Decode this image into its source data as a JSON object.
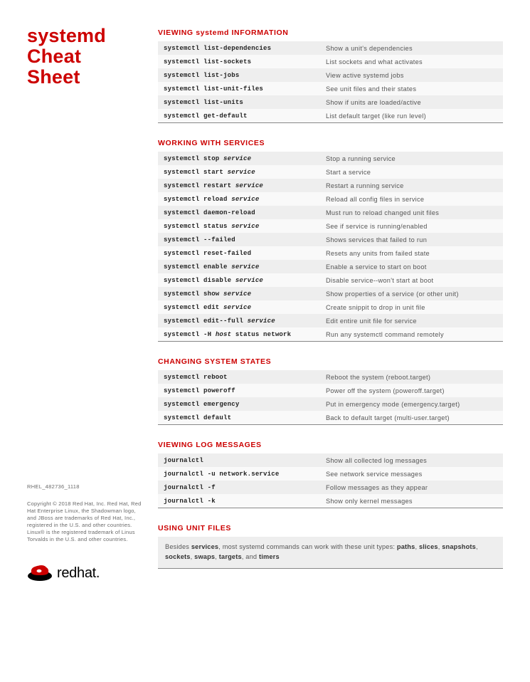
{
  "title_color": "#cc0000",
  "section_title_color": "#cc0000",
  "title_lines": [
    "systemd",
    "Cheat",
    "Sheet"
  ],
  "docid": "RHEL_482736_1118",
  "copyright": "Copyright © 2018 Red Hat, Inc. Red Hat, Red Hat Enterprise Linux, the Shadowman logo, and JBoss are trademarks of Red Hat, Inc., registered in the U.S. and other countries. Linux® is the registered trademark of Linus Torvalds in the U.S. and other countries.",
  "logo_text": "redhat.",
  "sections": [
    {
      "title": "VIEWING systemd INFORMATION",
      "rows": [
        {
          "cmd": "systemctl list-dependencies",
          "desc": "Show a unit's dependencies"
        },
        {
          "cmd": "systemctl list-sockets",
          "desc": "List sockets and what activates"
        },
        {
          "cmd": "systemctl list-jobs",
          "desc": "View active systemd jobs"
        },
        {
          "cmd": "systemctl list-unit-files",
          "desc": "See unit files and their states"
        },
        {
          "cmd": "systemctl list-units",
          "desc": "Show if units are loaded/active"
        },
        {
          "cmd": "systemctl get-default",
          "desc": "List default target (like run level)"
        }
      ]
    },
    {
      "title": "WORKING WITH SERVICES",
      "rows": [
        {
          "cmd": "systemctl stop <i>service</i>",
          "desc": "Stop a running service"
        },
        {
          "cmd": "systemctl start <i>service</i>",
          "desc": "Start a service"
        },
        {
          "cmd": "systemctl restart <i>service</i>",
          "desc": "Restart a running service"
        },
        {
          "cmd": "systemctl reload <i>service</i>",
          "desc": "Reload all config files in service"
        },
        {
          "cmd": "systemctl daemon-reload",
          "desc": "Must run to reload changed unit files"
        },
        {
          "cmd": "systemctl status <i>service</i>",
          "desc": "See if service is running/enabled"
        },
        {
          "cmd": "systemctl --failed",
          "desc": "Shows services that failed to run"
        },
        {
          "cmd": "systemctl reset-failed",
          "desc": "Resets any units from failed state"
        },
        {
          "cmd": "systemctl enable <i>service</i>",
          "desc": "Enable a service to start on boot"
        },
        {
          "cmd": "systemctl disable <i>service</i>",
          "desc": "Disable service--won't start at boot"
        },
        {
          "cmd": "systemctl show <i>service</i>",
          "desc": "Show properties of a service (or other unit)"
        },
        {
          "cmd": "systemctl edit <i>service</i>",
          "desc": "Create snippit to drop in unit file"
        },
        {
          "cmd": "systemctl edit--full <i>service</i>",
          "desc": "Edit entire unit file for service"
        },
        {
          "cmd": "systemctl -H <i>host</i> status network",
          "desc": "Run any systemctl command remotely"
        }
      ]
    },
    {
      "title": "CHANGING SYSTEM STATES",
      "rows": [
        {
          "cmd": "systemctl reboot",
          "desc": "Reboot the system (reboot.target)"
        },
        {
          "cmd": "systemctl poweroff",
          "desc": "Power off the system (poweroff.target)"
        },
        {
          "cmd": "systemctl emergency",
          "desc": "Put in emergency mode (emergency.target)"
        },
        {
          "cmd": "systemctl default",
          "desc": "Back to default target (multi-user.target)"
        }
      ]
    },
    {
      "title": "VIEWING LOG MESSAGES",
      "rows": [
        {
          "cmd": "journalctl",
          "desc": "Show all collected log messages"
        },
        {
          "cmd": "journalctl -u network.service",
          "desc": "See network service messages"
        },
        {
          "cmd": "journalctl -f",
          "desc": "Follow messages as they appear"
        },
        {
          "cmd": "journalctl -k",
          "desc": "Show only kernel messages"
        }
      ]
    }
  ],
  "unit_files": {
    "title": "USING UNIT FILES",
    "note": "Besides <b>services</b>, most systemd commands can work with these unit types: <b>paths</b>, <b>slices</b>, <b>snapshots</b>, <b>sockets</b>, <b>swaps</b>, <b>targets</b>, and <b>timers</b>"
  }
}
